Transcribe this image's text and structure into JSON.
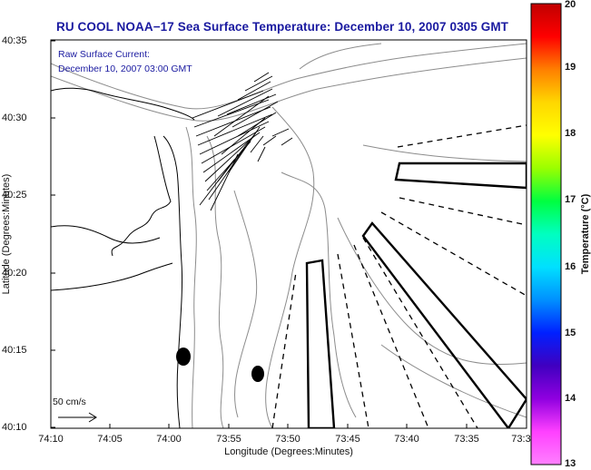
{
  "title": "RU COOL  NOAA−17  Sea Surface Temperature:  December 10, 2007 0305 GMT",
  "annotation": {
    "line1": "Raw Surface Current:",
    "line2": "December 10, 2007 03:00 GMT"
  },
  "x_axis": {
    "label": "Longitude (Degrees:Minutes)",
    "ticks": [
      "74:10",
      "74:05",
      "74:00",
      "73:55",
      "73:50",
      "73:45",
      "73:40",
      "73:35",
      "73:3"
    ]
  },
  "y_axis": {
    "label": "Latitude (Degrees:Minutes)",
    "ticks": [
      "40:35",
      "40:30",
      "40:25",
      "40:20",
      "40:15",
      "40:10"
    ]
  },
  "colorbar": {
    "label": "Temperature (°C)",
    "ticks": [
      "20",
      "19",
      "18",
      "17",
      "16",
      "15",
      "14",
      "13"
    ],
    "colors": [
      "#c00000",
      "#ff0000",
      "#ff7f00",
      "#ffd700",
      "#ffff00",
      "#9aff00",
      "#00ff40",
      "#00ffc0",
      "#00e0ff",
      "#0090ff",
      "#0020ff",
      "#4000c0",
      "#9000e0",
      "#ff40ff",
      "#ff80ff"
    ]
  },
  "scale": {
    "label": "50 cm/s"
  },
  "colors": {
    "title": "#1a1aa0",
    "annotation": "#1a1aa0",
    "land_outline": "#000000",
    "bathymetry": "#8c8c8c"
  }
}
